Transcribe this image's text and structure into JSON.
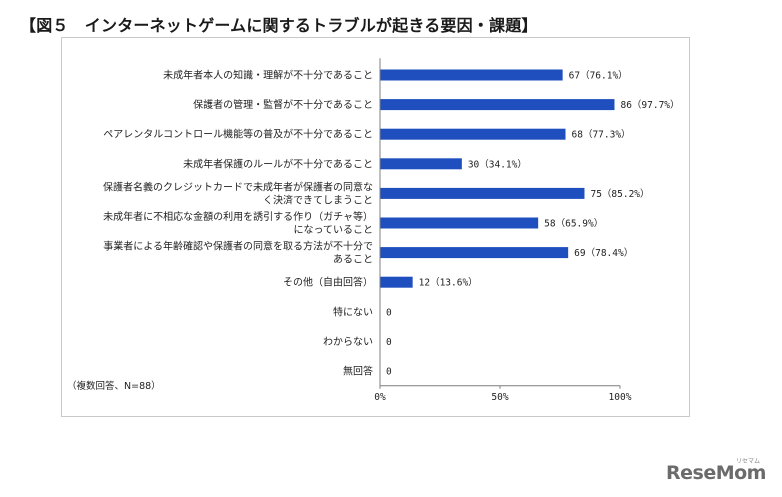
{
  "title": "【図５　インターネットゲームに関するトラブルが起きる要因・課題】",
  "note": "（複数回答、N=88）",
  "logo": "ReseMom",
  "logo_sub": "リセマム",
  "colors": {
    "bar": "#1f4fbf",
    "axis": "#7f7f7f"
  },
  "chart_data": {
    "type": "bar",
    "orientation": "horizontal",
    "categories": [
      [
        "未成年者本人の知識・理解が不十分であること"
      ],
      [
        "保護者の管理・監督が不十分であること"
      ],
      [
        "ペアレンタルコントロール機能等の普及が不十分であること"
      ],
      [
        "未成年者保護のルールが不十分であること"
      ],
      [
        "保護者名義のクレジットカードで未成年者が保護者の同意な",
        "く決済できてしまうこと"
      ],
      [
        "未成年者に不相応な金額の利用を誘引する作り（ガチャ等）",
        "になっていること"
      ],
      [
        "事業者による年齢確認や保護者の同意を取る方法が不十分で",
        "あること"
      ],
      [
        "その他（自由回答）"
      ],
      [
        "特にない"
      ],
      [
        "わからない"
      ],
      [
        "無回答"
      ]
    ],
    "values": [
      67,
      86,
      68,
      30,
      75,
      58,
      69,
      12,
      0,
      0,
      0
    ],
    "percents": [
      76.1,
      97.7,
      77.3,
      34.1,
      85.2,
      65.9,
      78.4,
      13.6,
      0,
      0,
      0
    ],
    "value_labels": [
      "67（76.1%）",
      "86（97.7%）",
      "68（77.3%）",
      "30（34.1%）",
      "75（85.2%）",
      "58（65.9%）",
      "69（78.4%）",
      "12（13.6%）",
      "0",
      "0",
      "0"
    ],
    "xticks": [
      "0%",
      "50%",
      "100%"
    ],
    "xlim": [
      0,
      100
    ]
  }
}
